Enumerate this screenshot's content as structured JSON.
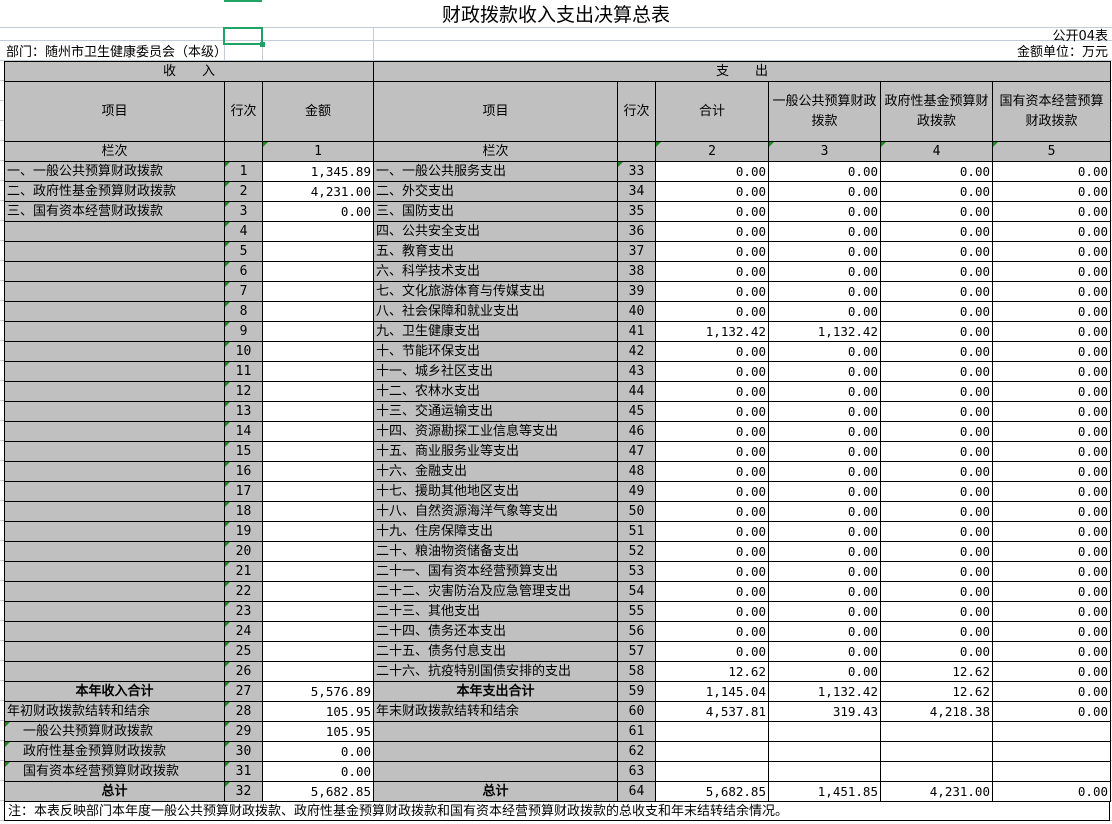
{
  "title": "财政拨款收入支出决算总表",
  "form_no": "公开04表",
  "department": "部门：随州市卫生健康委员会（本级）",
  "unit": "金额单位：万元",
  "headers": {
    "income": "收　　入",
    "expense": "支　　出",
    "item": "项目",
    "row_no": "行次",
    "amount": "金额",
    "total": "合计",
    "general": "一般公共预算财政拨款",
    "fund": "政府性基金预算财政拨款",
    "state": "国有资本经营预算财政拨款",
    "lanci": "栏次",
    "col1": "1",
    "col2": "2",
    "col3": "3",
    "col4": "4",
    "col5": "5"
  },
  "rows": [
    {
      "inc": "一、一般公共预算财政拨款",
      "n": "1",
      "amt": "1,345.89",
      "exp": "一、一般公共服务支出",
      "en": "33",
      "v": [
        "0.00",
        "0.00",
        "0.00",
        "0.00"
      ]
    },
    {
      "inc": "二、政府性基金预算财政拨款",
      "n": "2",
      "amt": "4,231.00",
      "exp": "二、外交支出",
      "en": "34",
      "v": [
        "0.00",
        "0.00",
        "0.00",
        "0.00"
      ]
    },
    {
      "inc": "三、国有资本经营财政拨款",
      "n": "3",
      "amt": "0.00",
      "exp": "三、国防支出",
      "en": "35",
      "v": [
        "0.00",
        "0.00",
        "0.00",
        "0.00"
      ]
    },
    {
      "inc": "",
      "n": "4",
      "amt": "",
      "exp": "四、公共安全支出",
      "en": "36",
      "v": [
        "0.00",
        "0.00",
        "0.00",
        "0.00"
      ]
    },
    {
      "inc": "",
      "n": "5",
      "amt": "",
      "exp": "五、教育支出",
      "en": "37",
      "v": [
        "0.00",
        "0.00",
        "0.00",
        "0.00"
      ]
    },
    {
      "inc": "",
      "n": "6",
      "amt": "",
      "exp": "六、科学技术支出",
      "en": "38",
      "v": [
        "0.00",
        "0.00",
        "0.00",
        "0.00"
      ]
    },
    {
      "inc": "",
      "n": "7",
      "amt": "",
      "exp": "七、文化旅游体育与传媒支出",
      "en": "39",
      "v": [
        "0.00",
        "0.00",
        "0.00",
        "0.00"
      ]
    },
    {
      "inc": "",
      "n": "8",
      "amt": "",
      "exp": "八、社会保障和就业支出",
      "en": "40",
      "v": [
        "0.00",
        "0.00",
        "0.00",
        "0.00"
      ]
    },
    {
      "inc": "",
      "n": "9",
      "amt": "",
      "exp": "九、卫生健康支出",
      "en": "41",
      "v": [
        "1,132.42",
        "1,132.42",
        "0.00",
        "0.00"
      ]
    },
    {
      "inc": "",
      "n": "10",
      "amt": "",
      "exp": "十、节能环保支出",
      "en": "42",
      "v": [
        "0.00",
        "0.00",
        "0.00",
        "0.00"
      ]
    },
    {
      "inc": "",
      "n": "11",
      "amt": "",
      "exp": "十一、城乡社区支出",
      "en": "43",
      "v": [
        "0.00",
        "0.00",
        "0.00",
        "0.00"
      ]
    },
    {
      "inc": "",
      "n": "12",
      "amt": "",
      "exp": "十二、农林水支出",
      "en": "44",
      "v": [
        "0.00",
        "0.00",
        "0.00",
        "0.00"
      ]
    },
    {
      "inc": "",
      "n": "13",
      "amt": "",
      "exp": "十三、交通运输支出",
      "en": "45",
      "v": [
        "0.00",
        "0.00",
        "0.00",
        "0.00"
      ]
    },
    {
      "inc": "",
      "n": "14",
      "amt": "",
      "exp": "十四、资源勘探工业信息等支出",
      "en": "46",
      "v": [
        "0.00",
        "0.00",
        "0.00",
        "0.00"
      ]
    },
    {
      "inc": "",
      "n": "15",
      "amt": "",
      "exp": "十五、商业服务业等支出",
      "en": "47",
      "v": [
        "0.00",
        "0.00",
        "0.00",
        "0.00"
      ]
    },
    {
      "inc": "",
      "n": "16",
      "amt": "",
      "exp": "十六、金融支出",
      "en": "48",
      "v": [
        "0.00",
        "0.00",
        "0.00",
        "0.00"
      ]
    },
    {
      "inc": "",
      "n": "17",
      "amt": "",
      "exp": "十七、援助其他地区支出",
      "en": "49",
      "v": [
        "0.00",
        "0.00",
        "0.00",
        "0.00"
      ]
    },
    {
      "inc": "",
      "n": "18",
      "amt": "",
      "exp": "十八、自然资源海洋气象等支出",
      "en": "50",
      "v": [
        "0.00",
        "0.00",
        "0.00",
        "0.00"
      ]
    },
    {
      "inc": "",
      "n": "19",
      "amt": "",
      "exp": "十九、住房保障支出",
      "en": "51",
      "v": [
        "0.00",
        "0.00",
        "0.00",
        "0.00"
      ]
    },
    {
      "inc": "",
      "n": "20",
      "amt": "",
      "exp": "二十、粮油物资储备支出",
      "en": "52",
      "v": [
        "0.00",
        "0.00",
        "0.00",
        "0.00"
      ]
    },
    {
      "inc": "",
      "n": "21",
      "amt": "",
      "exp": "二十一、国有资本经营预算支出",
      "en": "53",
      "v": [
        "0.00",
        "0.00",
        "0.00",
        "0.00"
      ]
    },
    {
      "inc": "",
      "n": "22",
      "amt": "",
      "exp": "二十二、灾害防治及应急管理支出",
      "en": "54",
      "v": [
        "0.00",
        "0.00",
        "0.00",
        "0.00"
      ]
    },
    {
      "inc": "",
      "n": "23",
      "amt": "",
      "exp": "二十三、其他支出",
      "en": "55",
      "v": [
        "0.00",
        "0.00",
        "0.00",
        "0.00"
      ]
    },
    {
      "inc": "",
      "n": "24",
      "amt": "",
      "exp": "二十四、债务还本支出",
      "en": "56",
      "v": [
        "0.00",
        "0.00",
        "0.00",
        "0.00"
      ]
    },
    {
      "inc": "",
      "n": "25",
      "amt": "",
      "exp": "二十五、债务付息支出",
      "en": "57",
      "v": [
        "0.00",
        "0.00",
        "0.00",
        "0.00"
      ]
    },
    {
      "inc": "",
      "n": "26",
      "amt": "",
      "exp": "二十六、抗疫特别国债安排的支出",
      "en": "58",
      "v": [
        "12.62",
        "0.00",
        "12.62",
        "0.00"
      ]
    },
    {
      "inc": "本年收入合计",
      "n": "27",
      "amt": "5,576.89",
      "exp": "本年支出合计",
      "en": "59",
      "v": [
        "1,145.04",
        "1,132.42",
        "12.62",
        "0.00"
      ],
      "bold": true
    },
    {
      "inc": "年初财政拨款结转和结余",
      "n": "28",
      "amt": "105.95",
      "exp": "年末财政拨款结转和结余",
      "en": "60",
      "v": [
        "4,537.81",
        "319.43",
        "4,218.38",
        "0.00"
      ]
    },
    {
      "inc": "一般公共预算财政拨款",
      "n": "29",
      "amt": "105.95",
      "exp": "",
      "en": "61",
      "v": [
        "",
        "",
        "",
        ""
      ],
      "indent": true
    },
    {
      "inc": "政府性基金预算财政拨款",
      "n": "30",
      "amt": "0.00",
      "exp": "",
      "en": "62",
      "v": [
        "",
        "",
        "",
        ""
      ],
      "indent": true
    },
    {
      "inc": "国有资本经营预算财政拨款",
      "n": "31",
      "amt": "0.00",
      "exp": "",
      "en": "63",
      "v": [
        "",
        "",
        "",
        ""
      ],
      "indent": true
    },
    {
      "inc": "总计",
      "n": "32",
      "amt": "5,682.85",
      "exp": "总计",
      "en": "64",
      "v": [
        "5,682.85",
        "1,451.85",
        "4,231.00",
        "0.00"
      ],
      "bold": true
    }
  ],
  "note": "注：本表反映部门本年度一般公共预算财政拨款、政府性基金预算财政拨款和国有资本经营预算财政拨款的总收支和年末结转结余情况。"
}
